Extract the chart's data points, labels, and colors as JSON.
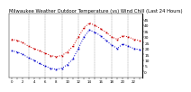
{
  "title": "Milwaukee Weather Outdoor Temperature (vs) Wind Chill (Last 24 Hours)",
  "title_fontsize": 3.8,
  "temp": [
    28,
    27,
    25,
    22,
    20,
    18,
    16,
    14,
    13,
    14,
    17,
    22,
    30,
    38,
    42,
    40,
    37,
    34,
    30,
    28,
    31,
    30,
    28,
    27
  ],
  "wind_chill": [
    18,
    17,
    15,
    12,
    10,
    7,
    5,
    3,
    2,
    3,
    6,
    11,
    20,
    30,
    36,
    34,
    31,
    27,
    23,
    20,
    24,
    22,
    20,
    19
  ],
  "temp_color": "#cc0000",
  "wind_chill_color": "#0000cc",
  "background_color": "#ffffff",
  "grid_color": "#888888",
  "ylim": [
    -5,
    50
  ],
  "ytick_values": [
    0,
    5,
    10,
    15,
    20,
    25,
    30,
    35,
    40,
    45
  ],
  "n_points": 24,
  "vgrid_positions": [
    3,
    6,
    9,
    12,
    15,
    18,
    21
  ],
  "ylabel_fontsize": 3.2,
  "xlabel_fontsize": 2.8,
  "line_width": 0.7,
  "marker_size": 1.2
}
